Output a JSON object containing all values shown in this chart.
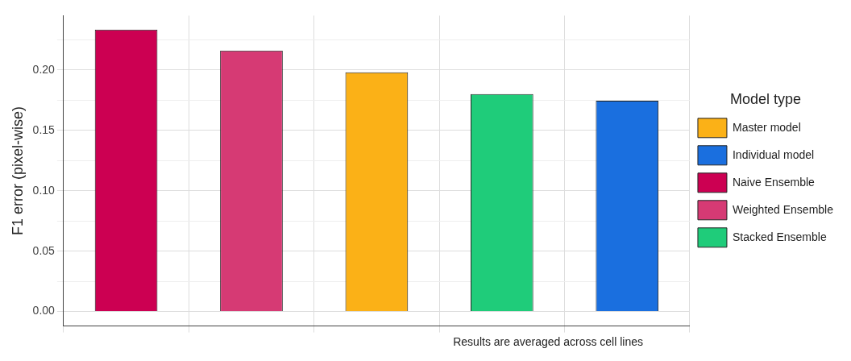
{
  "chart_data": {
    "type": "bar",
    "ylabel": "F1 error (pixel-wise)",
    "legend_title": "Model type",
    "annotations": [
      "Results are averaged across cell lines"
    ],
    "categories": [
      null,
      null,
      null,
      null,
      null
    ],
    "series": [
      {
        "name": "Master model",
        "color": "#fbb117",
        "values": [
          null,
          null,
          0.198,
          null,
          null
        ]
      },
      {
        "name": "Individual model",
        "color": "#1a6fdf",
        "values": [
          null,
          null,
          null,
          null,
          0.1745
        ]
      },
      {
        "name": "Naive Ensemble",
        "color": "#cc0052",
        "values": [
          0.2335,
          null,
          null,
          null,
          null
        ]
      },
      {
        "name": "Weighted Ensemble",
        "color": "#d63a74",
        "values": [
          null,
          0.216,
          null,
          null,
          null
        ]
      },
      {
        "name": "Stacked Ensemble",
        "color": "#1fcc7a",
        "values": [
          null,
          null,
          null,
          0.18,
          null
        ]
      }
    ],
    "ylim": [
      -0.012,
      0.245
    ],
    "yticks": [
      {
        "value": 0,
        "label": "0.00"
      },
      {
        "value": 0.025,
        "label": null
      },
      {
        "value": 0.05,
        "label": "0.05"
      },
      {
        "value": 0.075,
        "label": null
      },
      {
        "value": 0.1,
        "label": "0.10"
      },
      {
        "value": 0.125,
        "label": null
      },
      {
        "value": 0.15,
        "label": "0.15"
      },
      {
        "value": 0.175,
        "label": null
      },
      {
        "value": 0.2,
        "label": "0.20"
      },
      {
        "value": 0.225,
        "label": null
      }
    ],
    "grid": true,
    "legend": "right"
  }
}
